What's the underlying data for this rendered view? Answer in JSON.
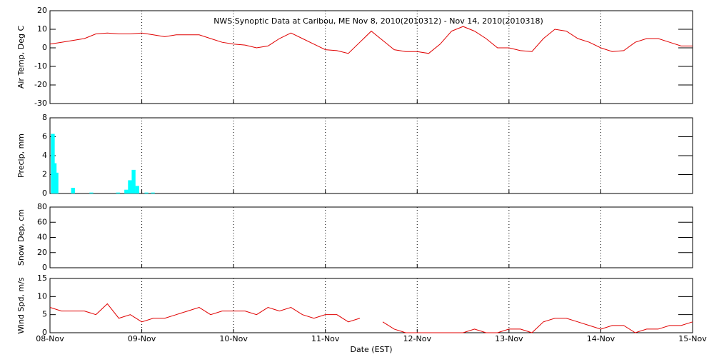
{
  "chart_data": [
    {
      "type": "line",
      "title": "NWS Synoptic Data at Caribou, ME   Nov  8, 2010(2010312) - Nov 14, 2010(2010318)",
      "ylabel": "Air Temp, Deg C",
      "color": "#e00000",
      "x": [
        0,
        0.125,
        0.25,
        0.375,
        0.5,
        0.625,
        0.75,
        0.875,
        1,
        1.125,
        1.25,
        1.375,
        1.5,
        1.625,
        1.75,
        1.875,
        2,
        2.125,
        2.25,
        2.375,
        2.5,
        2.625,
        2.75,
        2.875,
        3,
        3.125,
        3.25,
        3.375,
        3.5,
        3.625,
        3.75,
        3.875,
        4,
        4.125,
        4.25,
        4.375,
        4.5,
        4.625,
        4.75,
        4.875,
        5,
        5.125,
        5.25,
        5.375,
        5.5,
        5.625,
        5.75,
        5.875,
        6,
        6.125,
        6.25,
        6.375,
        6.5,
        6.625,
        6.75,
        6.875,
        7
      ],
      "values": [
        2,
        3,
        4,
        5,
        7.5,
        8,
        7.5,
        7.5,
        8,
        7,
        6,
        7,
        7,
        7,
        5,
        3,
        2,
        1.5,
        0,
        1,
        5,
        8,
        5,
        2,
        -1,
        -1.5,
        -3,
        3,
        9,
        4,
        -1,
        -2,
        -2,
        -3,
        2,
        9,
        11.5,
        9,
        5,
        0,
        0,
        -1.5,
        -2,
        5,
        10,
        9,
        5,
        3,
        0,
        -2,
        -1.5,
        3,
        5,
        5,
        3,
        1,
        1
      ],
      "xlim": [
        0,
        7
      ],
      "xticks": [
        0,
        1,
        2,
        3,
        4,
        5,
        6,
        7
      ],
      "ylim": [
        -30,
        20
      ],
      "yticks": [
        -30,
        -20,
        -10,
        0,
        10,
        20
      ]
    },
    {
      "type": "bar",
      "ylabel": "Precip, mm",
      "color": "#00ffff",
      "x": [
        0.01,
        0.03,
        0.05,
        0.23,
        0.43,
        0.72,
        0.81,
        0.85,
        0.89,
        0.93,
        1.03,
        1.1
      ],
      "values": [
        6.3,
        3.2,
        2.2,
        0.6,
        0.1,
        0.1,
        0.4,
        1.4,
        2.5,
        0.8,
        0.1,
        0.1
      ],
      "xlim": [
        0,
        7
      ],
      "xticks": [
        0,
        1,
        2,
        3,
        4,
        5,
        6,
        7
      ],
      "ylim": [
        0,
        8
      ],
      "yticks": [
        0,
        2,
        4,
        6,
        8
      ]
    },
    {
      "type": "line",
      "ylabel": "Snow Dep, cm",
      "color": "#e00000",
      "x": [],
      "values": [],
      "xlim": [
        0,
        7
      ],
      "xticks": [
        0,
        1,
        2,
        3,
        4,
        5,
        6,
        7
      ],
      "ylim": [
        0,
        80
      ],
      "yticks": [
        0,
        20,
        40,
        60,
        80
      ]
    },
    {
      "type": "line",
      "ylabel": "Wind Spd, m/s",
      "xlabel": "Date (EST)",
      "color": "#e00000",
      "x": [
        0,
        0.125,
        0.25,
        0.375,
        0.5,
        0.625,
        0.75,
        0.875,
        1,
        1.125,
        1.25,
        1.375,
        1.5,
        1.625,
        1.75,
        1.875,
        2,
        2.125,
        2.25,
        2.375,
        2.5,
        2.625,
        2.75,
        2.875,
        3,
        3.125,
        3.25,
        3.375,
        3.5,
        3.625,
        3.75,
        3.875,
        4,
        4.125,
        4.25,
        4.375,
        4.5,
        4.625,
        4.75,
        4.875,
        5,
        5.125,
        5.25,
        5.375,
        5.5,
        5.625,
        5.75,
        5.875,
        6,
        6.125,
        6.25,
        6.375,
        6.5,
        6.625,
        6.75,
        6.875,
        7
      ],
      "values": [
        7,
        6,
        6,
        6,
        5,
        8,
        4,
        5,
        3,
        4,
        4,
        5,
        6,
        7,
        5,
        6,
        6,
        6,
        5,
        7,
        6,
        7,
        5,
        4,
        5,
        5,
        3,
        4,
        null,
        3,
        1,
        0,
        0,
        0,
        0,
        0,
        0,
        1,
        0,
        0,
        1,
        1,
        0,
        3,
        4,
        4,
        3,
        2,
        1,
        2,
        2,
        0,
        1,
        1,
        2,
        2,
        3
      ],
      "xlim": [
        0,
        7
      ],
      "xticks": [
        {
          "value": 0,
          "label": "08-Nov"
        },
        {
          "value": 1,
          "label": "09-Nov"
        },
        {
          "value": 2,
          "label": "10-Nov"
        },
        {
          "value": 3,
          "label": "11-Nov"
        },
        {
          "value": 4,
          "label": "12-Nov"
        },
        {
          "value": 5,
          "label": "13-Nov"
        },
        {
          "value": 6,
          "label": "14-Nov"
        },
        {
          "value": 7,
          "label": "15-Nov"
        }
      ],
      "ylim": [
        0,
        15
      ],
      "yticks": [
        0,
        5,
        10,
        15
      ]
    }
  ]
}
